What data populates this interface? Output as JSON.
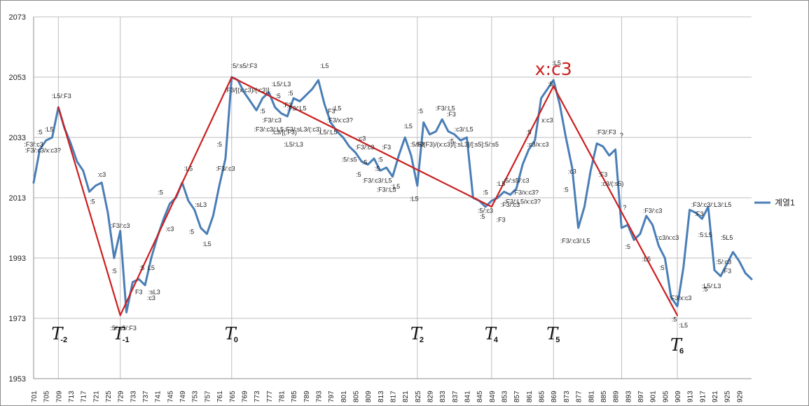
{
  "legend": {
    "label": "계열1",
    "color": "#4a7eb6"
  },
  "colors": {
    "series": "#4a7eb6",
    "trend": "#cc1f1f",
    "grid": "#bfbfbf"
  },
  "chart_data": {
    "type": "line",
    "title": "",
    "xlabel": "",
    "ylabel": "",
    "ylim": [
      1953,
      2073
    ],
    "yticks": [
      1953,
      1973,
      1993,
      2013,
      2033,
      2053,
      2073
    ],
    "xrange": [
      701,
      933
    ],
    "xticks": [
      701,
      705,
      709,
      713,
      717,
      721,
      725,
      729,
      733,
      737,
      741,
      745,
      749,
      753,
      757,
      761,
      765,
      769,
      773,
      777,
      781,
      785,
      789,
      793,
      797,
      801,
      805,
      809,
      813,
      817,
      821,
      825,
      829,
      833,
      837,
      841,
      845,
      849,
      853,
      857,
      861,
      865,
      869,
      873,
      877,
      881,
      885,
      889,
      893,
      897,
      901,
      905,
      909,
      913,
      917,
      921,
      925,
      929
    ],
    "vertical_gridlines_at": [
      709,
      729,
      765,
      825,
      849,
      869,
      891,
      909
    ],
    "legend_position": "right",
    "series": [
      {
        "name": "계열1",
        "x": [
          701,
          703,
          705,
          707,
          709,
          711,
          713,
          715,
          717,
          719,
          721,
          723,
          725,
          727,
          729,
          731,
          733,
          735,
          737,
          739,
          741,
          743,
          745,
          747,
          749,
          751,
          753,
          755,
          757,
          759,
          761,
          763,
          765,
          767,
          769,
          771,
          773,
          775,
          777,
          779,
          781,
          783,
          785,
          787,
          789,
          791,
          793,
          795,
          797,
          799,
          801,
          803,
          805,
          807,
          809,
          811,
          813,
          815,
          817,
          819,
          821,
          823,
          825,
          827,
          829,
          831,
          833,
          835,
          837,
          839,
          841,
          843,
          845,
          847,
          849,
          851,
          853,
          855,
          857,
          859,
          861,
          863,
          865,
          867,
          869,
          871,
          873,
          875,
          877,
          879,
          881,
          883,
          885,
          887,
          889,
          891,
          893,
          895,
          897,
          899,
          901,
          903,
          905,
          907,
          909,
          911,
          913,
          915,
          917,
          919,
          921,
          923,
          925,
          927,
          929,
          931,
          933
        ],
        "y": [
          2018,
          2029,
          2032,
          2033,
          2043,
          2036,
          2031,
          2025,
          2022,
          2015,
          2017,
          2018,
          2008,
          1993,
          2002,
          1975,
          1985,
          1986,
          1984,
          1993,
          2000,
          2006,
          2011,
          2013,
          2018,
          2012,
          2009,
          2003,
          2001,
          2007,
          2017,
          2026,
          2053,
          2052,
          2048,
          2045,
          2042,
          2046,
          2048,
          2043,
          2041,
          2040,
          2046,
          2045,
          2047,
          2049,
          2052,
          2044,
          2038,
          2035,
          2033,
          2030,
          2028,
          2025,
          2024,
          2026,
          2022,
          2023,
          2020,
          2027,
          2033,
          2027,
          2017,
          2038,
          2034,
          2035,
          2039,
          2035,
          2034,
          2032,
          2033,
          2013,
          2012,
          2010,
          2012,
          2013,
          2015,
          2014,
          2016,
          2024,
          2029,
          2032,
          2046,
          2049,
          2052,
          2044,
          2033,
          2023,
          2003,
          2010,
          2022,
          2031,
          2030,
          2027,
          2029,
          2003,
          2004,
          1999,
          2001,
          2007,
          2004,
          1997,
          1993,
          1980,
          1977,
          1990,
          2009,
          2008,
          2006,
          2010,
          1989,
          1987,
          1991,
          1995,
          1992,
          1988,
          1986
        ]
      },
      {
        "name": "",
        "x": [
          709,
          729,
          765,
          849,
          869,
          909
        ],
        "y": [
          2043,
          1974,
          2053,
          2010,
          2050,
          1974
        ]
      }
    ],
    "phase_labels": [
      {
        "x": 709,
        "text": "T",
        "sub": "-2"
      },
      {
        "x": 729,
        "text": "T",
        "sub": "-1"
      },
      {
        "x": 765,
        "text": "T",
        "sub": "0"
      },
      {
        "x": 825,
        "text": "T",
        "sub": "2"
      },
      {
        "x": 849,
        "text": "T",
        "sub": "4"
      },
      {
        "x": 869,
        "text": "T",
        "sub": "5"
      },
      {
        "x": 909,
        "text": "T",
        "sub": "6"
      }
    ],
    "callout": {
      "x": 869,
      "y": 2057,
      "text": "x:c3"
    },
    "annotations": [
      {
        "x": 710,
        "y": 2046,
        "text": ":L5/:F3"
      },
      {
        "x": 703,
        "y": 2034,
        "text": ":5"
      },
      {
        "x": 706,
        "y": 2035,
        "text": ":L5"
      },
      {
        "x": 701,
        "y": 2030,
        "text": ":F3/:c3"
      },
      {
        "x": 704,
        "y": 2028,
        "text": ":F3/:c3/x:c3?"
      },
      {
        "x": 723,
        "y": 2020,
        "text": ":c3"
      },
      {
        "x": 720,
        "y": 2011,
        "text": ":5"
      },
      {
        "x": 729,
        "y": 2003,
        "text": ":F3/:c3"
      },
      {
        "x": 727,
        "y": 1988,
        "text": ":5"
      },
      {
        "x": 736,
        "y": 1989,
        "text": ":5"
      },
      {
        "x": 739,
        "y": 1989,
        "text": "L5"
      },
      {
        "x": 735,
        "y": 1981,
        "text": "F3"
      },
      {
        "x": 740,
        "y": 1981,
        "text": ":sL3"
      },
      {
        "x": 739,
        "y": 1979,
        "text": ":c3"
      },
      {
        "x": 730,
        "y": 1969,
        "text": ":5/:s5/:F3"
      },
      {
        "x": 745,
        "y": 2002,
        "text": ":c3"
      },
      {
        "x": 742,
        "y": 2014,
        "text": ":5"
      },
      {
        "x": 751,
        "y": 2022,
        "text": ":L5"
      },
      {
        "x": 755,
        "y": 2010,
        "text": ":sL3"
      },
      {
        "x": 752,
        "y": 2001,
        "text": ":5"
      },
      {
        "x": 757,
        "y": 1997,
        "text": ":L5"
      },
      {
        "x": 763,
        "y": 2022,
        "text": ":F3/:c3"
      },
      {
        "x": 761,
        "y": 2030,
        "text": ":5"
      },
      {
        "x": 769,
        "y": 2056,
        "text": ":5/:s5/:F3"
      },
      {
        "x": 770,
        "y": 2048,
        "text": ":F3/[(x:c3)/(:c3)]"
      },
      {
        "x": 781,
        "y": 2050,
        "text": ":L5/:L3"
      },
      {
        "x": 784,
        "y": 2047,
        "text": ":5"
      },
      {
        "x": 775,
        "y": 2041,
        "text": ":5"
      },
      {
        "x": 780,
        "y": 2046,
        "text": ":5"
      },
      {
        "x": 783,
        "y": 2043,
        "text": ":F3"
      },
      {
        "x": 786,
        "y": 2042,
        "text": ":F3/:L5"
      },
      {
        "x": 778,
        "y": 2038,
        "text": ":F3/:c3"
      },
      {
        "x": 777,
        "y": 2035,
        "text": ":F3/:c3/:L5"
      },
      {
        "x": 782,
        "y": 2034,
        "text": ":c3/[(:F3)"
      },
      {
        "x": 788,
        "y": 2035,
        "text": ":F3/:sL3/(:c3)"
      },
      {
        "x": 785,
        "y": 2030,
        "text": ":L5/:L3"
      },
      {
        "x": 795,
        "y": 2056,
        "text": ":L5"
      },
      {
        "x": 797,
        "y": 2041,
        "text": ":F3"
      },
      {
        "x": 799,
        "y": 2042,
        "text": ":L5"
      },
      {
        "x": 800,
        "y": 2038,
        "text": ":F3/x:c3?"
      },
      {
        "x": 796,
        "y": 2034,
        "text": ":L5/:L5"
      },
      {
        "x": 807,
        "y": 2032,
        "text": ":c3"
      },
      {
        "x": 808,
        "y": 2029,
        "text": ":F3/:c3"
      },
      {
        "x": 815,
        "y": 2029,
        "text": ":F3"
      },
      {
        "x": 803,
        "y": 2025,
        "text": ":5/:s5"
      },
      {
        "x": 808,
        "y": 2024,
        "text": ":5"
      },
      {
        "x": 813,
        "y": 2025,
        "text": ":5"
      },
      {
        "x": 812,
        "y": 2022,
        "text": ":5"
      },
      {
        "x": 806,
        "y": 2020,
        "text": ":5"
      },
      {
        "x": 812,
        "y": 2018,
        "text": ":F3/:c3/:L5"
      },
      {
        "x": 818,
        "y": 2016,
        "text": ":L5"
      },
      {
        "x": 815,
        "y": 2015,
        "text": ":F3/:L5"
      },
      {
        "x": 822,
        "y": 2036,
        "text": ":L5"
      },
      {
        "x": 825,
        "y": 2030,
        "text": ":5/F3"
      },
      {
        "x": 838,
        "y": 2030,
        "text": ":5/(F3)/(x:c3)/[:sL3]/[:s5]:5/:s5"
      },
      {
        "x": 864,
        "y": 2030,
        "text": ":c3/x:c3"
      },
      {
        "x": 826,
        "y": 2041,
        "text": ":5"
      },
      {
        "x": 834,
        "y": 2042,
        "text": ":F3/:L5"
      },
      {
        "x": 836,
        "y": 2040,
        "text": ":F3"
      },
      {
        "x": 840,
        "y": 2035,
        "text": ":c3/:L5"
      },
      {
        "x": 836,
        "y": 2031,
        "text": ":5"
      },
      {
        "x": 824,
        "y": 2012,
        "text": ":L5"
      },
      {
        "x": 847,
        "y": 2014,
        "text": ":5"
      },
      {
        "x": 852,
        "y": 2017,
        "text": ":L5"
      },
      {
        "x": 857,
        "y": 2018,
        "text": ":5/:s5/:c3"
      },
      {
        "x": 847,
        "y": 2008,
        "text": ":5/:c3"
      },
      {
        "x": 846,
        "y": 2006,
        "text": ":5"
      },
      {
        "x": 852,
        "y": 2005,
        "text": ":F3"
      },
      {
        "x": 855,
        "y": 2010,
        "text": ":F3/:c3"
      },
      {
        "x": 859,
        "y": 2011,
        "text": ":F3/:L5/x:c3?"
      },
      {
        "x": 860,
        "y": 2014,
        "text": ":F3/x:c3?"
      },
      {
        "x": 861,
        "y": 2034,
        "text": ":5"
      },
      {
        "x": 867,
        "y": 2038,
        "text": "x:c3"
      },
      {
        "x": 868,
        "y": 2050,
        "text": ":5"
      },
      {
        "x": 870,
        "y": 2057,
        "text": ":L5"
      },
      {
        "x": 875,
        "y": 2021,
        "text": ":c3"
      },
      {
        "x": 873,
        "y": 2015,
        "text": ":5"
      },
      {
        "x": 886,
        "y": 2034,
        "text": ":F3/:F3"
      },
      {
        "x": 891,
        "y": 2033,
        "text": "?"
      },
      {
        "x": 885,
        "y": 2020,
        "text": ":F3"
      },
      {
        "x": 888,
        "y": 2017,
        "text": ":c3/(:s5)"
      },
      {
        "x": 892,
        "y": 2009,
        "text": "?"
      },
      {
        "x": 876,
        "y": 1998,
        "text": ":F3/:c3/:L5"
      },
      {
        "x": 893,
        "y": 1996,
        "text": ":5"
      },
      {
        "x": 901,
        "y": 2008,
        "text": ":F3/:c3"
      },
      {
        "x": 906,
        "y": 1999,
        "text": ":c3/x:c3"
      },
      {
        "x": 899,
        "y": 1992,
        "text": ":L5"
      },
      {
        "x": 904,
        "y": 1989,
        "text": ":5"
      },
      {
        "x": 910,
        "y": 1979,
        "text": ":F3/x:c3"
      },
      {
        "x": 908,
        "y": 1972,
        "text": ":5"
      },
      {
        "x": 911,
        "y": 1970,
        "text": ":L5"
      },
      {
        "x": 920,
        "y": 2010,
        "text": ":F3/:c3/:L3/:L5"
      },
      {
        "x": 916,
        "y": 2007,
        "text": ":F3"
      },
      {
        "x": 918,
        "y": 2000,
        "text": ":5:L5"
      },
      {
        "x": 925,
        "y": 1999,
        "text": ":5L5"
      },
      {
        "x": 924,
        "y": 1991,
        "text": ":5/:c3"
      },
      {
        "x": 925,
        "y": 1988,
        "text": ":F3"
      },
      {
        "x": 920,
        "y": 1983,
        "text": ":L5/:L3"
      },
      {
        "x": 918,
        "y": 1982,
        "text": ":5"
      }
    ]
  }
}
